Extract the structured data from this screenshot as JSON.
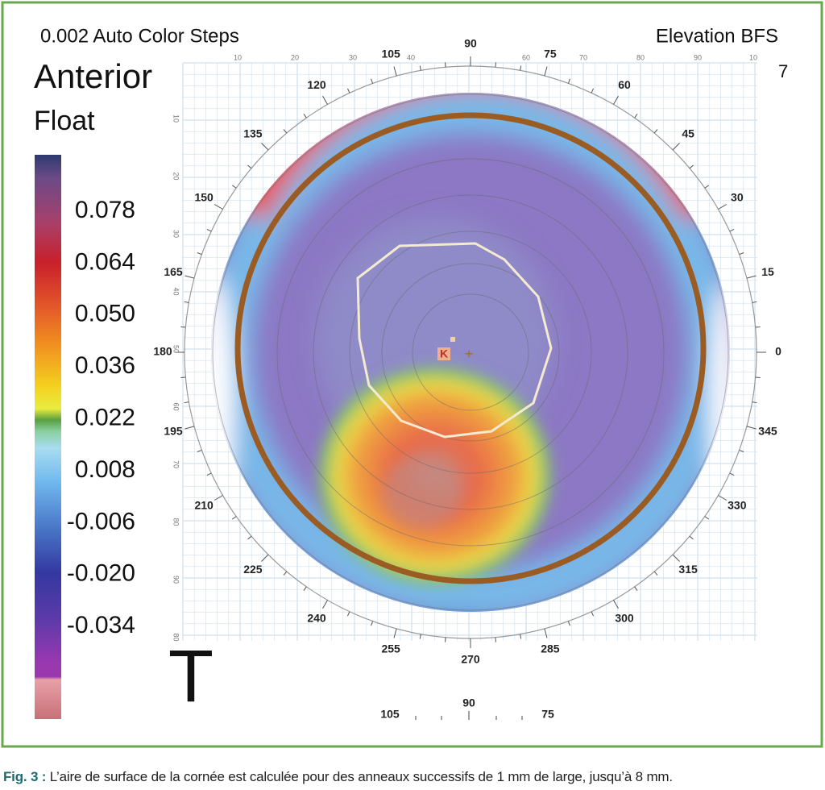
{
  "header": {
    "color_steps": "0.002 Auto Color Steps",
    "map_type": "Elevation BFS",
    "surface": "Anterior",
    "mode": "Float",
    "index": "7"
  },
  "colorbar": {
    "labels": [
      "0.078",
      "0.064",
      "0.050",
      "0.036",
      "0.022",
      "0.008",
      "-0.006",
      "-0.020",
      "-0.034"
    ]
  },
  "map": {
    "angle_labels": [
      "0",
      "15",
      "30",
      "45",
      "60",
      "75",
      "90",
      "105",
      "120",
      "135",
      "150",
      "165",
      "180",
      "195",
      "210",
      "225",
      "240",
      "255",
      "270",
      "285",
      "300",
      "315",
      "330",
      "345"
    ],
    "top_scale": [
      "10",
      "20",
      "30",
      "40",
      "60",
      "70",
      "80",
      "90",
      "10"
    ],
    "left_scale": [
      "10",
      "20",
      "30",
      "40",
      "50",
      "60",
      "70",
      "80",
      "90",
      "80"
    ],
    "marker": "K",
    "eye_label": "T",
    "bottom_scale": [
      "105",
      "90",
      "75"
    ]
  },
  "caption": {
    "label": "Fig. 3 :",
    "text": "L’aire de surface de la cornée est calculée pour des anneaux successifs de 1 mm de large, jusqu’à 8 mm."
  }
}
